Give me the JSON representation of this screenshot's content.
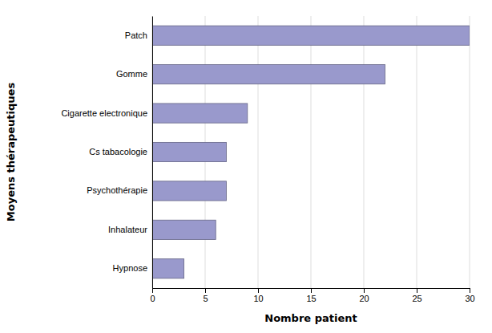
{
  "chart_data": {
    "type": "bar",
    "orientation": "horizontal",
    "categories": [
      "Hypnose",
      "Inhalateur",
      "Psychothérapie",
      "Cs tabacologie",
      "Cigarette electronique",
      "Gomme",
      "Patch"
    ],
    "values": [
      3,
      6,
      7,
      7,
      9,
      22,
      30
    ],
    "color": "#9999cc",
    "xlabel": "Nombre patient",
    "ylabel": "Moyens thérapeutiques",
    "xlim": [
      0,
      30
    ],
    "xticks": [
      0,
      5,
      10,
      15,
      20,
      25,
      30
    ],
    "grid": true
  }
}
